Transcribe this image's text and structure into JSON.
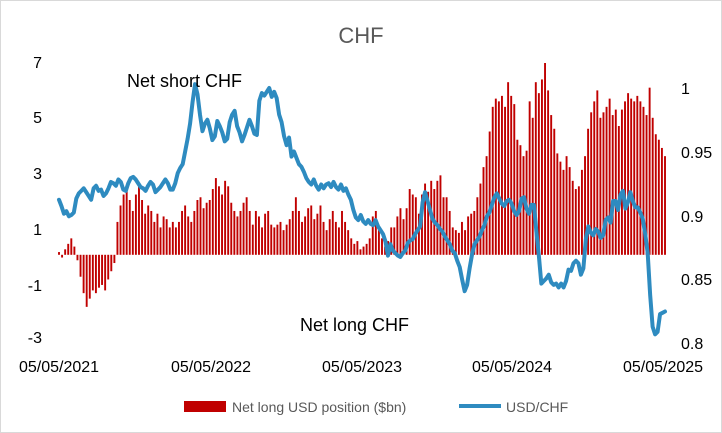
{
  "chart_data": {
    "type": "bar+line",
    "title": "CHF",
    "colors": {
      "bars": "#c00000",
      "line": "#2e8bc0"
    },
    "x_ticks": [
      "05/05/2021",
      "05/05/2022",
      "05/05/2023",
      "05/05/2024",
      "05/05/2025"
    ],
    "y_left": {
      "ticks": [
        "7",
        "5",
        "3",
        "1",
        "-1",
        "-3"
      ],
      "range": [
        -3,
        7
      ]
    },
    "y_right": {
      "ticks": [
        "1",
        "0.95",
        "0.9",
        "0.85",
        "0.8"
      ],
      "range": [
        0.8,
        1.0
      ]
    },
    "grid": false,
    "legend_position": "bottom",
    "annotations": [
      "Net short CHF",
      "Net long CHF"
    ],
    "series": [
      {
        "name": "Net long USD position ($bn)",
        "type": "bar",
        "axis": "left",
        "values": [
          0.1,
          -0.1,
          0.2,
          0.4,
          0.6,
          0.3,
          -0.2,
          -0.8,
          -1.4,
          -1.9,
          -1.6,
          -1.3,
          -1.4,
          -1.2,
          -1.1,
          -1.3,
          -0.9,
          -0.6,
          -0.3,
          1.2,
          1.8,
          2.2,
          2.5,
          2.0,
          1.6,
          2.2,
          2.6,
          2.0,
          1.5,
          1.8,
          1.6,
          1.2,
          1.5,
          1.0,
          1.4,
          1.3,
          1.0,
          1.2,
          1.0,
          1.2,
          1.6,
          1.8,
          1.4,
          1.2,
          1.6,
          2.0,
          2.1,
          1.7,
          1.9,
          2.0,
          2.4,
          2.8,
          2.5,
          2.2,
          2.7,
          2.5,
          1.9,
          1.6,
          1.4,
          1.6,
          1.9,
          2.1,
          1.6,
          1.1,
          1.6,
          1.4,
          1.0,
          1.5,
          1.6,
          1.1,
          1.0,
          1.1,
          1.2,
          0.9,
          1.1,
          1.3,
          1.6,
          2.1,
          1.6,
          1.2,
          1.4,
          1.7,
          1.8,
          1.3,
          1.5,
          1.8,
          1.2,
          0.9,
          1.3,
          1.6,
          1.2,
          1.0,
          1.6,
          1.2,
          0.9,
          0.6,
          0.4,
          0.5,
          0.2,
          0.3,
          0.4,
          0.6,
          1.4,
          1.6,
          0.9,
          0.6,
          0.3,
          0.5,
          1.0,
          1.0,
          1.4,
          1.7,
          1.3,
          1.7,
          2.4,
          2.2,
          2.1,
          1.5,
          2.2,
          2.6,
          2.3,
          2.7,
          2.4,
          2.7,
          2.9,
          2.1,
          2.1,
          1.6,
          1.0,
          0.9,
          0.8,
          1.2,
          0.9,
          1.4,
          1.5,
          1.6,
          2.1,
          2.6,
          3.2,
          3.6,
          4.5,
          5.4,
          5.7,
          5.6,
          5.8,
          5.4,
          6.3,
          5.8,
          5.5,
          4.2,
          4.0,
          3.6,
          3.8,
          5.6,
          5.0,
          6.3,
          5.9,
          6.4,
          7.0,
          6.0,
          5.1,
          4.6,
          3.7,
          3.4,
          3.1,
          3.6,
          3.2,
          2.7,
          2.4,
          2.5,
          3.1,
          3.6,
          4.6,
          5.2,
          5.6,
          6.0,
          5.0,
          5.2,
          5.4,
          5.7,
          5.1,
          5.3,
          4.7,
          5.3,
          5.6,
          5.9,
          5.7,
          5.6,
          5.8,
          5.6,
          5.4,
          5.1,
          6.1,
          5.0,
          4.4,
          4.2,
          3.9,
          3.6
        ]
      },
      {
        "name": "USD/CHF",
        "type": "line",
        "axis": "right",
        "values": [
          0.912,
          0.907,
          0.901,
          0.903,
          0.899,
          0.9,
          0.902,
          0.913,
          0.917,
          0.919,
          0.921,
          0.918,
          0.915,
          0.912,
          0.921,
          0.923,
          0.919,
          0.92,
          0.915,
          0.917,
          0.921,
          0.926,
          0.925,
          0.923,
          0.928,
          0.926,
          0.92,
          0.919,
          0.925,
          0.929,
          0.93,
          0.928,
          0.925,
          0.922,
          0.921,
          0.919,
          0.923,
          0.926,
          0.924,
          0.918,
          0.92,
          0.922,
          0.925,
          0.928,
          0.925,
          0.92,
          0.92,
          0.925,
          0.933,
          0.937,
          0.94,
          0.95,
          0.96,
          0.972,
          0.989,
          1.003,
          0.995,
          0.979,
          0.966,
          0.972,
          0.975,
          0.968,
          0.959,
          0.962,
          0.974,
          0.97,
          0.965,
          0.958,
          0.96,
          0.973,
          0.979,
          0.982,
          0.97,
          0.965,
          0.958,
          0.963,
          0.969,
          0.975,
          0.97,
          0.964,
          0.963,
          0.99,
          0.996,
          0.994,
          0.997,
          1.0,
          0.993,
          0.997,
          0.992,
          0.979,
          0.973,
          0.962,
          0.955,
          0.961,
          0.946,
          0.95,
          0.945,
          0.94,
          0.938,
          0.934,
          0.929,
          0.926,
          0.924,
          0.928,
          0.923,
          0.92,
          0.924,
          0.921,
          0.924,
          0.925,
          0.922,
          0.926,
          0.922,
          0.92,
          0.924,
          0.919,
          0.921,
          0.916,
          0.912,
          0.904,
          0.898,
          0.896,
          0.9,
          0.895,
          0.893,
          0.896,
          0.893,
          0.892,
          0.896,
          0.891,
          0.888,
          0.885,
          0.879,
          0.868,
          0.877,
          0.872,
          0.87,
          0.868,
          0.867,
          0.87,
          0.872,
          0.878,
          0.88,
          0.881,
          0.885,
          0.888,
          0.891,
          0.91,
          0.918,
          0.911,
          0.904,
          0.897,
          0.894,
          0.892,
          0.889,
          0.887,
          0.883,
          0.88,
          0.877,
          0.872,
          0.87,
          0.864,
          0.859,
          0.849,
          0.84,
          0.845,
          0.858,
          0.869,
          0.877,
          0.88,
          0.883,
          0.888,
          0.892,
          0.899,
          0.902,
          0.908,
          0.914,
          0.917,
          0.913,
          0.909,
          0.907,
          0.911,
          0.912,
          0.909,
          0.903,
          0.9,
          0.903,
          0.913,
          0.914,
          0.905,
          0.901,
          0.908,
          0.908,
          0.887,
          0.868,
          0.846,
          0.848,
          0.85,
          0.853,
          0.847,
          0.845,
          0.846,
          0.843,
          0.846,
          0.843,
          0.848,
          0.857,
          0.856,
          0.862,
          0.864,
          0.862,
          0.853,
          0.858,
          0.881,
          0.891,
          0.886,
          0.884,
          0.889,
          0.887,
          0.882,
          0.884,
          0.896,
          0.898,
          0.894,
          0.911,
          0.911,
          0.904,
          0.916,
          0.919,
          0.905,
          0.91,
          0.918,
          0.911,
          0.906,
          0.906,
          0.902,
          0.897,
          0.885,
          0.87,
          0.837,
          0.812,
          0.806,
          0.808,
          0.822,
          0.823,
          0.824
        ]
      }
    ]
  }
}
